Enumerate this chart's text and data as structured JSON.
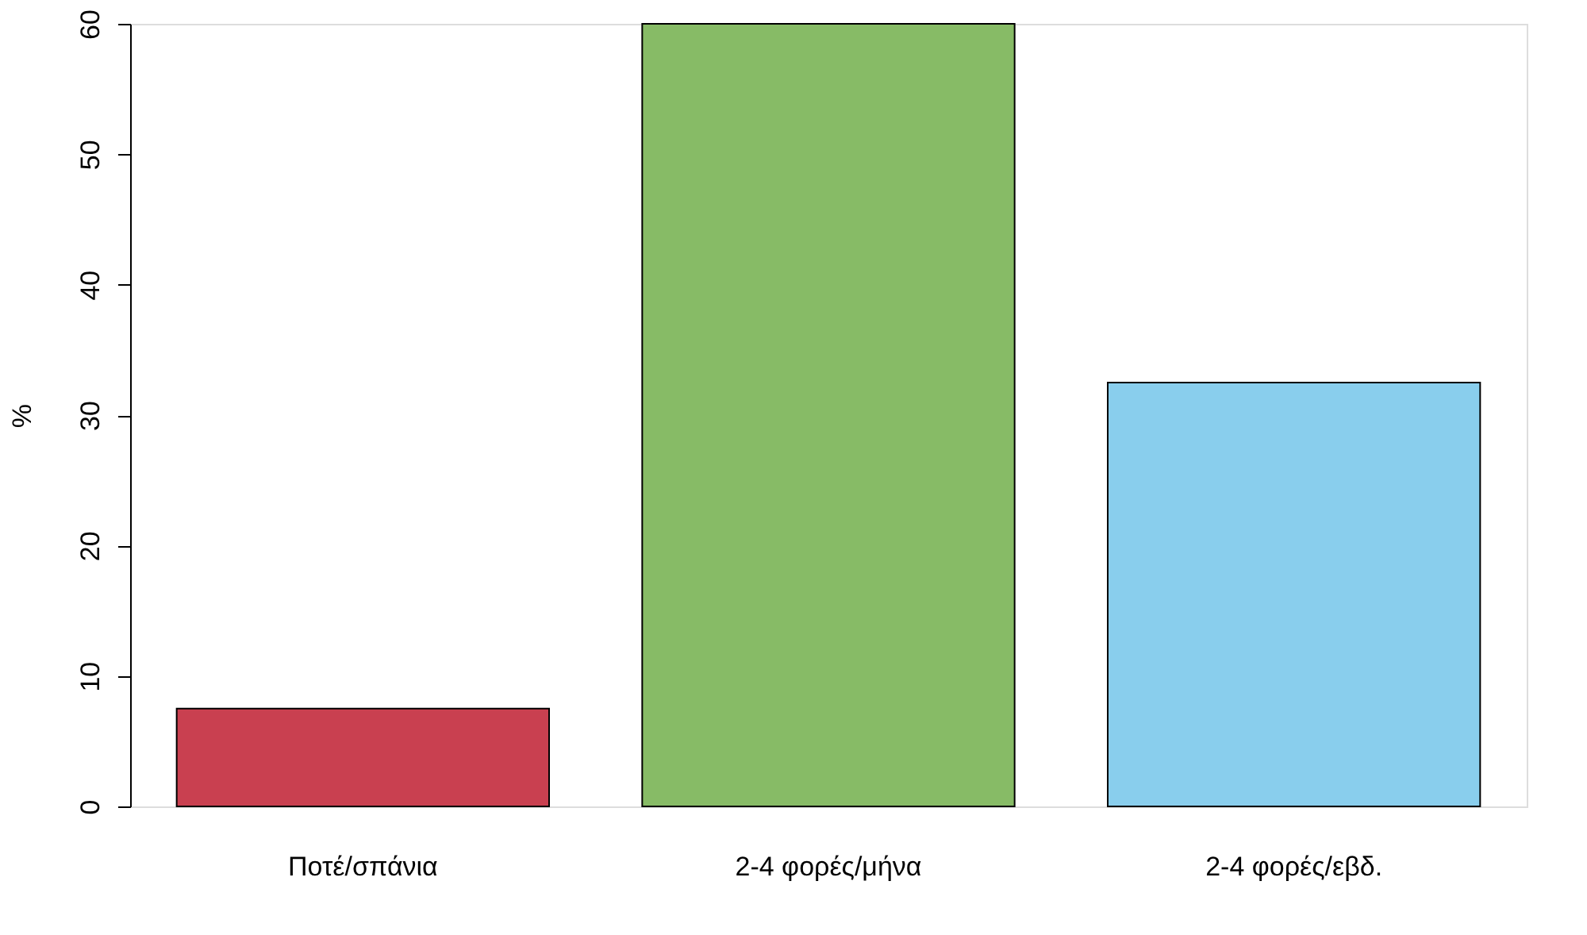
{
  "chart_data": {
    "type": "bar",
    "ylabel": "%",
    "categories": [
      "Ποτέ/σπάνια",
      "2-4 φορές/μήνα",
      "2-4 φορές/εβδ."
    ],
    "values": [
      7.5,
      60,
      32.5
    ],
    "colors": [
      "#c94050",
      "#87bb66",
      "#89ceed"
    ],
    "ylim": [
      0,
      60
    ],
    "yticks": [
      0,
      10,
      20,
      30,
      40,
      50,
      60
    ],
    "grid": false,
    "legend": false
  }
}
